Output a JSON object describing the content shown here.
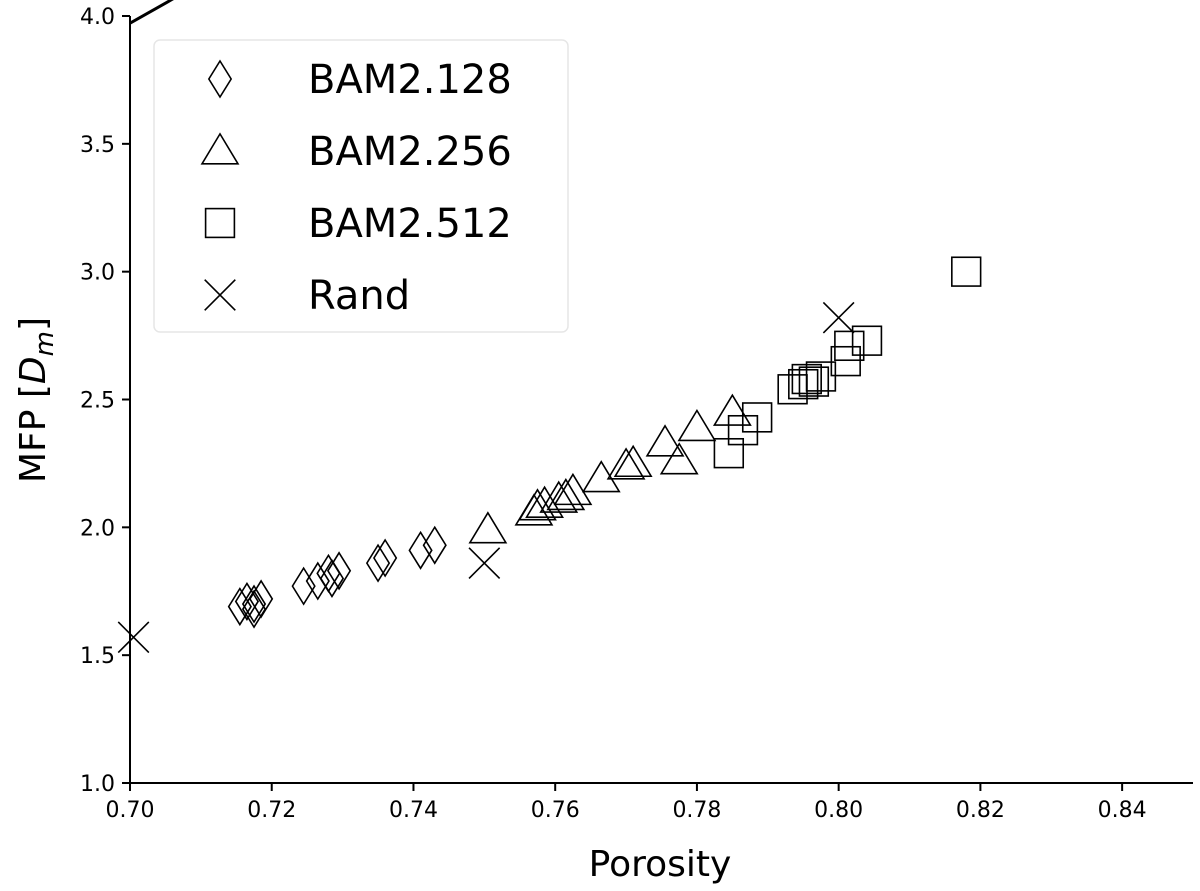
{
  "chart_data": {
    "type": "scatter",
    "xlabel": "Porosity",
    "ylabel": "MFP [",
    "ylabel_math_base": "D",
    "ylabel_math_sub": "m",
    "ylabel_close": "]",
    "xlim": [
      0.7,
      0.85
    ],
    "ylim": [
      1.0,
      4.0
    ],
    "x_ticks": [
      "0.70",
      "0.72",
      "0.74",
      "0.76",
      "0.78",
      "0.80",
      "0.82",
      "0.84"
    ],
    "y_ticks": [
      "1.0",
      "1.5",
      "2.0",
      "2.5",
      "3.0",
      "3.5",
      "4.0"
    ],
    "grid": false,
    "legend_position": "top-left",
    "series": [
      {
        "name": "BAM2.128",
        "marker": "diamond",
        "points": [
          [
            0.7155,
            1.69
          ],
          [
            0.7165,
            1.71
          ],
          [
            0.7175,
            1.7
          ],
          [
            0.7185,
            1.72
          ],
          [
            0.7175,
            1.68
          ],
          [
            0.7245,
            1.77
          ],
          [
            0.7265,
            1.79
          ],
          [
            0.7285,
            1.8
          ],
          [
            0.7295,
            1.83
          ],
          [
            0.728,
            1.82
          ],
          [
            0.735,
            1.86
          ],
          [
            0.736,
            1.88
          ],
          [
            0.741,
            1.91
          ],
          [
            0.743,
            1.93
          ]
        ]
      },
      {
        "name": "BAM2.256",
        "marker": "triangle",
        "points": [
          [
            0.7505,
            1.99
          ],
          [
            0.757,
            2.06
          ],
          [
            0.7575,
            2.08
          ],
          [
            0.7585,
            2.09
          ],
          [
            0.7605,
            2.11
          ],
          [
            0.7615,
            2.12
          ],
          [
            0.7625,
            2.14
          ],
          [
            0.7665,
            2.19
          ],
          [
            0.77,
            2.24
          ],
          [
            0.771,
            2.25
          ],
          [
            0.7755,
            2.33
          ],
          [
            0.7775,
            2.26
          ],
          [
            0.78,
            2.39
          ],
          [
            0.785,
            2.45
          ]
        ]
      },
      {
        "name": "BAM2.512",
        "marker": "square",
        "points": [
          [
            0.7845,
            2.29
          ],
          [
            0.7865,
            2.38
          ],
          [
            0.7885,
            2.43
          ],
          [
            0.7935,
            2.54
          ],
          [
            0.795,
            2.56
          ],
          [
            0.7955,
            2.58
          ],
          [
            0.7965,
            2.57
          ],
          [
            0.7975,
            2.59
          ],
          [
            0.801,
            2.65
          ],
          [
            0.8015,
            2.71
          ],
          [
            0.804,
            2.73
          ],
          [
            0.818,
            3.0
          ]
        ]
      },
      {
        "name": "Rand",
        "marker": "x",
        "points": [
          [
            0.7005,
            1.57
          ],
          [
            0.75,
            1.86
          ],
          [
            0.8,
            2.82
          ]
        ]
      }
    ],
    "fit_curve": {
      "a": 0.05233,
      "b": 5.6465,
      "c": 1.2474,
      "x_range": [
        0.7,
        0.85
      ]
    }
  }
}
